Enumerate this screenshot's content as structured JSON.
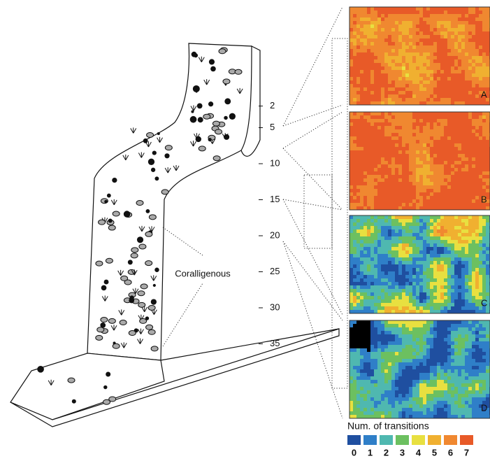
{
  "depth_scale": {
    "ticks": [
      2,
      5,
      10,
      15,
      20,
      25,
      30,
      35
    ]
  },
  "zone_label": "Coralligenous",
  "panels": [
    {
      "label": "A",
      "label_color": "#111111"
    },
    {
      "label": "B",
      "label_color": "#111111"
    },
    {
      "label": "C",
      "label_color": "#111111"
    },
    {
      "label": "D",
      "label_color": "#9ab8f0"
    }
  ],
  "legend": {
    "title": "Num. of transitions",
    "items": [
      {
        "label": "0",
        "color": "#1f4fa0"
      },
      {
        "label": "1",
        "color": "#2f7fc8"
      },
      {
        "label": "2",
        "color": "#4fb8b0"
      },
      {
        "label": "3",
        "color": "#6cc060"
      },
      {
        "label": "4",
        "color": "#e8e040"
      },
      {
        "label": "5",
        "color": "#f0b030"
      },
      {
        "label": "6",
        "color": "#f08830"
      },
      {
        "label": "7",
        "color": "#e85a28"
      }
    ]
  }
}
